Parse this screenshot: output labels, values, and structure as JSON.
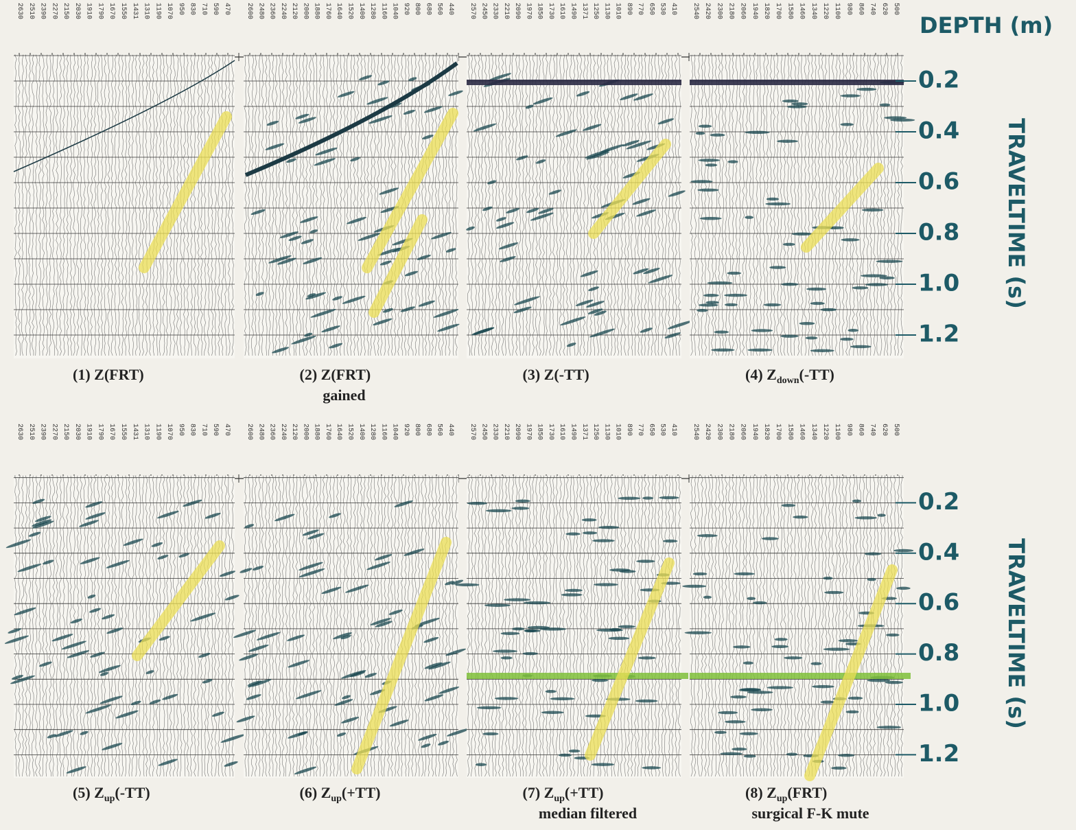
{
  "header": {
    "depth_title": "DEPTH (m)"
  },
  "rows": [
    {
      "time_axis_title": "TRAVELTIME (s)",
      "time_ticks": [
        0.2,
        0.4,
        0.6,
        0.8,
        {
          "value": 1,
          "label": "1.0"
        },
        1.2
      ],
      "panels": [
        {
          "depths": [
            2630,
            2510,
            2390,
            2270,
            2150,
            2030,
            1910,
            1790,
            1670,
            1550,
            1431,
            1310,
            1190,
            1070,
            950,
            830,
            710,
            590,
            470
          ],
          "caption": {
            "prefix": "(1) Z(FRT)"
          }
        },
        {
          "depths": [
            2600,
            2480,
            2360,
            2240,
            2120,
            2000,
            1880,
            1760,
            1640,
            1520,
            1400,
            1280,
            1160,
            1040,
            920,
            800,
            680,
            560,
            440
          ],
          "caption": {
            "prefix": "(2)  Z(FRT)",
            "note": "gained"
          }
        },
        {
          "depths": [
            2570,
            2450,
            2330,
            2210,
            2090,
            1970,
            1850,
            1730,
            1610,
            1490,
            1371,
            1250,
            1130,
            1010,
            890,
            770,
            650,
            530,
            410
          ],
          "caption": {
            "prefix": "(3) Z(-TT)"
          }
        },
        {
          "depths": [
            2540,
            2420,
            2300,
            2180,
            2060,
            1940,
            1820,
            1700,
            1580,
            1460,
            1340,
            1220,
            1100,
            980,
            860,
            740,
            620,
            500
          ],
          "caption": {
            "prefix": "(4) Z",
            "sub": "down",
            "suffix": "(-TT)"
          }
        }
      ]
    },
    {
      "time_axis_title": "TRAVELTIME (s)",
      "time_ticks": [
        0.2,
        0.4,
        0.6,
        0.8,
        {
          "value": 1,
          "label": "1.0"
        },
        1.2
      ],
      "panels": [
        {
          "depths": [
            2630,
            2510,
            2390,
            2270,
            2150,
            2030,
            1910,
            1790,
            1670,
            1550,
            1431,
            1310,
            1190,
            1070,
            950,
            830,
            710,
            590,
            470
          ],
          "caption": {
            "prefix": "(5) Z",
            "sub": "up",
            "suffix": "(-TT)"
          }
        },
        {
          "depths": [
            2600,
            2480,
            2360,
            2240,
            2120,
            2000,
            1880,
            1760,
            1640,
            1520,
            1400,
            1280,
            1160,
            1040,
            920,
            800,
            680,
            560,
            440
          ],
          "caption": {
            "prefix": "(6) Z",
            "sub": "up",
            "suffix": "(+TT)"
          }
        },
        {
          "depths": [
            2570,
            2450,
            2330,
            2210,
            2090,
            1970,
            1850,
            1730,
            1610,
            1490,
            1371,
            1250,
            1130,
            1010,
            890,
            770,
            650,
            530,
            410
          ],
          "caption": {
            "prefix": "(7) Z",
            "sub": "up",
            "suffix": "(+TT)",
            "note": "median filtered"
          }
        },
        {
          "depths": [
            2540,
            2420,
            2300,
            2180,
            2060,
            1940,
            1820,
            1700,
            1580,
            1460,
            1340,
            1220,
            1100,
            980,
            860,
            740,
            620,
            500
          ],
          "caption": {
            "prefix": "(8) Z",
            "sub": "up",
            "suffix": "(FRT)",
            "note": "surgical F-K mute"
          }
        }
      ]
    }
  ]
}
